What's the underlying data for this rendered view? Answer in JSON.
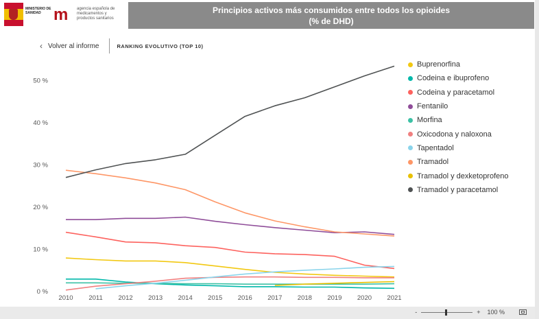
{
  "header": {
    "ministry_logo_text": "MINISTERIO DE SANIDAD",
    "agency_logo_text": "agencia española de medicamentos y productos sanitarios",
    "title_line1": "Principios activos más consumidos entre todos los opioides",
    "title_line2": "(% de DHD)"
  },
  "nav": {
    "back_label": "Volver al informe",
    "section_title": "RANKING EVOLUTIVO (TOP 10)"
  },
  "footer": {
    "zoom_out": "-",
    "zoom_in": "+",
    "zoom_level": "100 %"
  },
  "chart_data": {
    "type": "line",
    "x": [
      2010,
      2011,
      2012,
      2013,
      2014,
      2015,
      2016,
      2017,
      2018,
      2019,
      2020,
      2021
    ],
    "y_ticks": [
      "0 %",
      "10 %",
      "20 %",
      "30 %",
      "40 %",
      "50 %"
    ],
    "ylim": [
      0,
      55
    ],
    "grid": false,
    "legend": "right",
    "series": [
      {
        "name": "Buprenorfina",
        "color": "#F2C811",
        "values": [
          7.8,
          7.4,
          7.1,
          7.1,
          6.7,
          5.9,
          5.1,
          4.4,
          4.0,
          3.7,
          3.5,
          3.3
        ]
      },
      {
        "name": "Codeina e ibuprofeno",
        "color": "#01B8AA",
        "values": [
          2.8,
          2.8,
          2.1,
          1.7,
          1.4,
          1.2,
          1.0,
          1.0,
          0.9,
          0.9,
          0.7,
          0.6
        ]
      },
      {
        "name": "Codeina y paracetamol",
        "color": "#FD625E",
        "values": [
          13.9,
          12.8,
          11.6,
          11.4,
          10.7,
          10.3,
          9.2,
          8.8,
          8.6,
          8.2,
          6.1,
          5.3
        ]
      },
      {
        "name": "Fentanilo",
        "color": "#8F4D99",
        "values": [
          16.9,
          16.9,
          17.2,
          17.2,
          17.5,
          16.5,
          15.7,
          15.0,
          14.4,
          13.8,
          14.0,
          13.4
        ]
      },
      {
        "name": "Morfina",
        "color": "#3CC1A5",
        "values": [
          1.9,
          1.9,
          1.8,
          1.8,
          1.7,
          1.7,
          1.6,
          1.6,
          1.6,
          1.6,
          1.6,
          1.7
        ]
      },
      {
        "name": "Oxicodona y naloxona",
        "color": "#F08080",
        "values": [
          0.2,
          1.1,
          1.7,
          2.3,
          3.0,
          3.2,
          3.3,
          3.3,
          3.2,
          3.2,
          3.1,
          3.1
        ]
      },
      {
        "name": "Tapentadol",
        "color": "#8AD4EB",
        "values": [
          null,
          0.5,
          1.2,
          1.8,
          2.5,
          3.3,
          4.0,
          4.5,
          4.9,
          5.2,
          5.6,
          5.8
        ]
      },
      {
        "name": "Tramadol",
        "color": "#FE9666",
        "values": [
          28.6,
          27.8,
          26.8,
          25.6,
          24.0,
          21.1,
          18.5,
          16.6,
          15.2,
          14.0,
          13.5,
          13.0
        ]
      },
      {
        "name": "Tramadol y dexketoprofeno",
        "color": "#E8C000",
        "values": [
          null,
          null,
          null,
          null,
          null,
          null,
          null,
          1.3,
          1.6,
          1.8,
          2.0,
          2.2
        ]
      },
      {
        "name": "Tramadol y paracetamol",
        "color": "#4F5253",
        "values": [
          26.9,
          28.7,
          30.2,
          31.1,
          32.4,
          36.9,
          41.4,
          43.9,
          45.8,
          48.4,
          51.0,
          53.3
        ]
      }
    ]
  }
}
